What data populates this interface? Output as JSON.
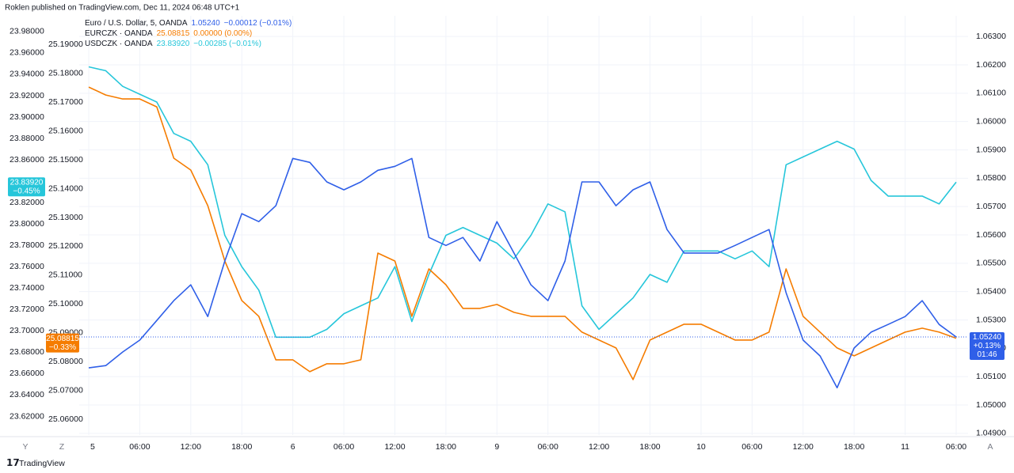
{
  "header": "Roklen published on TradingView.com, Dec 11, 2024 06:48 UTC+1",
  "footer": {
    "brand": "TradingView",
    "left_buttons": [
      "Y",
      "Z"
    ],
    "right_button": "A"
  },
  "chart_data": {
    "type": "line",
    "categories": [
      "5",
      null,
      null,
      "06:00",
      null,
      null,
      "12:00",
      null,
      null,
      "18:00",
      null,
      null,
      "6",
      null,
      null,
      "06:00",
      null,
      null,
      "12:00",
      null,
      null,
      "18:00",
      null,
      null,
      "9",
      null,
      null,
      "06:00",
      null,
      null,
      "12:00",
      null,
      null,
      "18:00",
      null,
      null,
      "10",
      null,
      null,
      "06:00",
      null,
      null,
      "12:00",
      null,
      null,
      "18:00",
      null,
      null,
      "11",
      null,
      null,
      "06:00"
    ],
    "grid": true,
    "ylim": [
      23.6026,
      23.9947
    ],
    "yticks": [
      {
        "value": 23.62,
        "label": "23.62000"
      },
      {
        "value": 23.64,
        "label": "23.64000"
      },
      {
        "value": 23.66,
        "label": "23.66000"
      },
      {
        "value": 23.68,
        "label": "23.68000"
      },
      {
        "value": 23.7,
        "label": "23.70000"
      },
      {
        "value": 23.72,
        "label": "23.72000"
      },
      {
        "value": 23.74,
        "label": "23.74000"
      },
      {
        "value": 23.76,
        "label": "23.76000"
      },
      {
        "value": 23.78,
        "label": "23.78000"
      },
      {
        "value": 23.8,
        "label": "23.80000"
      },
      {
        "value": 23.82,
        "label": "23.82000"
      },
      {
        "value": 23.84,
        "label": "23.84000"
      },
      {
        "value": 23.86,
        "label": "23.86000"
      },
      {
        "value": 23.88,
        "label": "23.88000"
      },
      {
        "value": 23.9,
        "label": "23.90000"
      },
      {
        "value": 23.92,
        "label": "23.92000"
      },
      {
        "value": 23.94,
        "label": "23.94000"
      },
      {
        "value": 23.96,
        "label": "23.96000"
      },
      {
        "value": 23.98,
        "label": "23.98000"
      }
    ],
    "y3lim": [
      25.0546,
      25.1999
    ],
    "y3ticks": [
      {
        "value": 25.06,
        "label": "25.06000"
      },
      {
        "value": 25.07,
        "label": "25.07000"
      },
      {
        "value": 25.08,
        "label": "25.08000"
      },
      {
        "value": 25.09,
        "label": "25.09000"
      },
      {
        "value": 25.1,
        "label": "25.10000"
      },
      {
        "value": 25.11,
        "label": "25.11000"
      },
      {
        "value": 25.12,
        "label": "25.12000"
      },
      {
        "value": 25.13,
        "label": "25.13000"
      },
      {
        "value": 25.14,
        "label": "25.14000"
      },
      {
        "value": 25.15,
        "label": "25.15000"
      },
      {
        "value": 25.16,
        "label": "25.16000"
      },
      {
        "value": 25.17,
        "label": "25.17000"
      },
      {
        "value": 25.18,
        "label": "25.18000"
      },
      {
        "value": 25.19,
        "label": "25.19000"
      }
    ],
    "y2lim": [
      1.04894,
      1.06373
    ],
    "y2ticks": [
      {
        "value": 1.049,
        "label": "1.04900"
      },
      {
        "value": 1.05,
        "label": "1.05000"
      },
      {
        "value": 1.051,
        "label": "1.05100"
      },
      {
        "value": 1.052,
        "label": "1.05200"
      },
      {
        "value": 1.053,
        "label": "1.05300"
      },
      {
        "value": 1.054,
        "label": "1.05400"
      },
      {
        "value": 1.055,
        "label": "1.05500"
      },
      {
        "value": 1.056,
        "label": "1.05600"
      },
      {
        "value": 1.057,
        "label": "1.05700"
      },
      {
        "value": 1.058,
        "label": "1.05800"
      },
      {
        "value": 1.059,
        "label": "1.05900"
      },
      {
        "value": 1.06,
        "label": "1.06000"
      },
      {
        "value": 1.061,
        "label": "1.06100"
      },
      {
        "value": 1.062,
        "label": "1.06200"
      },
      {
        "value": 1.063,
        "label": "1.06300"
      }
    ],
    "series": [
      {
        "name": "Euro / U.S. Dollar, 5, OANDA",
        "color": "#2f5fe8",
        "axis": "y2",
        "legend_value": "1.05240",
        "change": "−0.00012 (−0.01%)",
        "badge_change": "+0.13%",
        "countdown": "01:46",
        "values": [
          1.05131,
          1.05139,
          1.05187,
          1.05229,
          1.05298,
          1.05368,
          1.05424,
          1.05312,
          1.05508,
          1.05675,
          1.05647,
          1.05703,
          1.0587,
          1.05856,
          1.05787,
          1.05759,
          1.05787,
          1.05828,
          1.05842,
          1.0587,
          1.05591,
          1.05563,
          1.05591,
          1.05508,
          1.05647,
          1.05536,
          1.05424,
          1.05368,
          1.05508,
          1.05787,
          1.05787,
          1.05703,
          1.05759,
          1.05787,
          1.05619,
          1.05536,
          1.05536,
          1.05536,
          1.05563,
          1.05591,
          1.05619,
          1.05396,
          1.05229,
          1.05173,
          1.05061,
          1.05201,
          1.05257,
          1.05284,
          1.05312,
          1.05368,
          1.05284,
          1.0524
        ]
      },
      {
        "name": "EURCZK · OANDA",
        "color": "#f57c00",
        "axis": "y3",
        "legend_value": "25.08815",
        "change": "0.00000 (0.00%)",
        "badge_change": "−0.33%",
        "values": [
          25.1752,
          25.17246,
          25.1711,
          25.1711,
          25.16835,
          25.15054,
          25.14643,
          25.1341,
          25.11492,
          25.10122,
          25.09574,
          25.08067,
          25.08067,
          25.07656,
          25.0793,
          25.0793,
          25.08067,
          25.11766,
          25.11492,
          25.09574,
          25.11218,
          25.1067,
          25.09848,
          25.09848,
          25.09985,
          25.09711,
          25.09574,
          25.09574,
          25.09574,
          25.09026,
          25.08752,
          25.08478,
          25.07382,
          25.08752,
          25.09026,
          25.093,
          25.093,
          25.09026,
          25.08752,
          25.08752,
          25.09026,
          25.11218,
          25.09574,
          25.09026,
          25.08478,
          25.08204,
          25.08478,
          25.08752,
          25.09026,
          25.09163,
          25.09026,
          25.08815
        ]
      },
      {
        "name": "USDCZK · OANDA",
        "color": "#26c6da",
        "axis": "y",
        "legend_value": "23.83920",
        "change": "−0.00285 (−0.01%)",
        "badge_change": "−0.45%",
        "values": [
          23.947,
          23.94335,
          23.92869,
          23.92136,
          23.91403,
          23.88471,
          23.87738,
          23.85539,
          23.78942,
          23.7601,
          23.73811,
          23.69413,
          23.69413,
          23.69413,
          23.70146,
          23.71612,
          23.72345,
          23.73078,
          23.7601,
          23.70879,
          23.75277,
          23.78942,
          23.79675,
          23.78942,
          23.78209,
          23.76743,
          23.78942,
          23.81874,
          23.81141,
          23.72345,
          23.70146,
          23.71612,
          23.73078,
          23.75277,
          23.74544,
          23.77476,
          23.77476,
          23.77476,
          23.76743,
          23.77476,
          23.7601,
          23.85539,
          23.86272,
          23.87005,
          23.87738,
          23.87005,
          23.84073,
          23.82607,
          23.82607,
          23.82607,
          23.81874,
          23.8392
        ]
      }
    ]
  }
}
